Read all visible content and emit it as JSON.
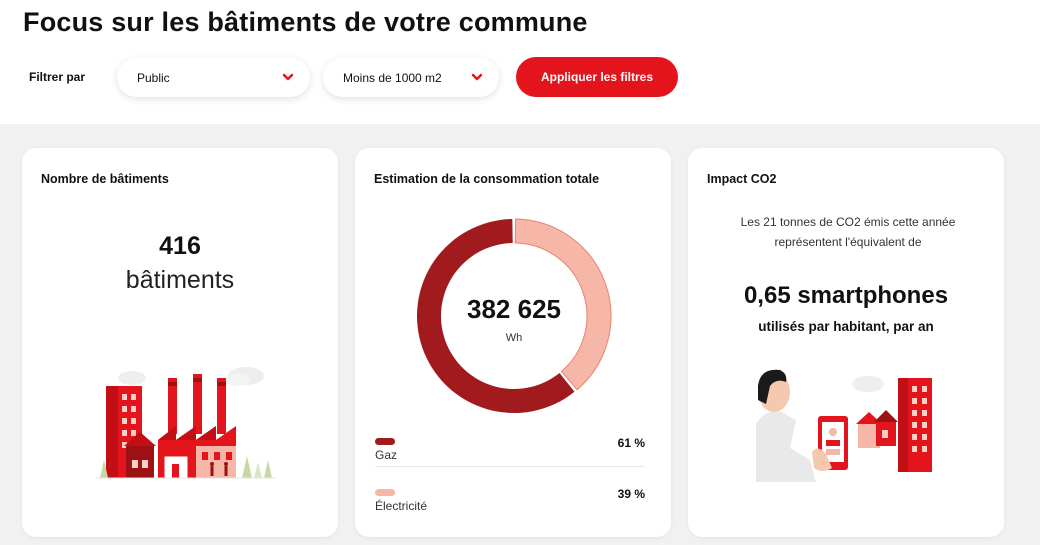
{
  "header": {
    "title": "Focus sur les bâtiments de votre commune",
    "filter_label": "Filtrer par",
    "filter_type": "Public",
    "filter_size": "Moins de 1000 m2",
    "apply_label": "Appliquer les filtres"
  },
  "card_buildings": {
    "title": "Nombre de bâtiments",
    "count": "416",
    "unit": "bâtiments"
  },
  "card_consumption": {
    "title": "Estimation de la consommation totale",
    "total": "382 625",
    "unit": "Wh",
    "legend": [
      {
        "label": "Gaz",
        "percent": "61 %",
        "value": 61,
        "color": "#a01a1e"
      },
      {
        "label": "Électricité",
        "percent": "39 %",
        "value": 39,
        "color": "#f7b7a8"
      }
    ]
  },
  "card_co2": {
    "title": "Impact CO2",
    "text": "Les 21 tonnes de CO2 émis cette année représentent l'équivalent de",
    "highlight": "0,65 smartphones",
    "subtitle": "utilisés par habitant, par an"
  },
  "colors": {
    "accent": "#e3141c",
    "gas": "#a01a1e",
    "electricity": "#f7b7a8"
  }
}
